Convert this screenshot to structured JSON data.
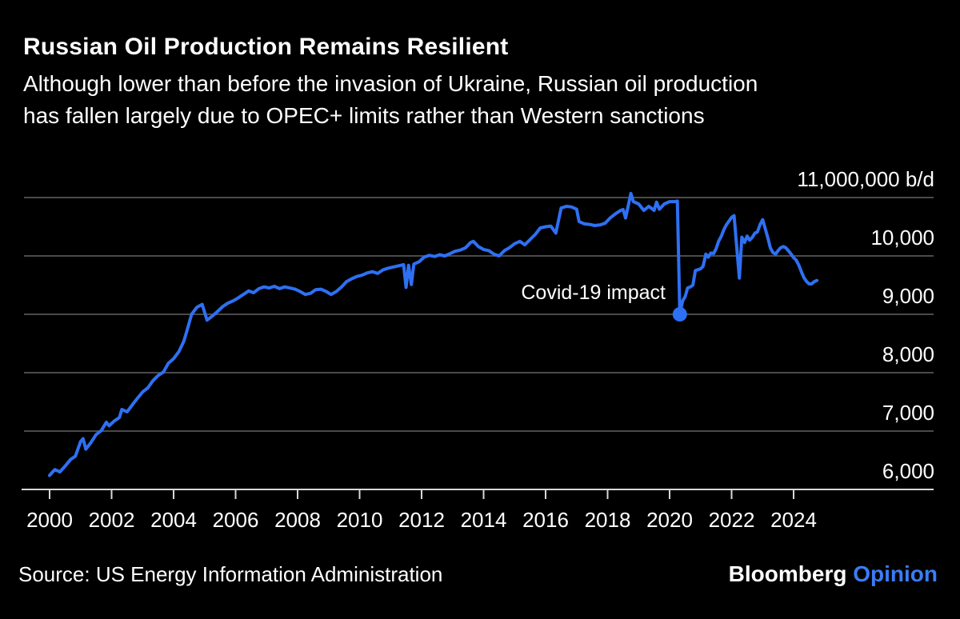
{
  "header": {
    "title": "Russian Oil Production Remains Resilient",
    "subtitle": "Although lower than before the invasion of Ukraine, Russian oil production\nhas fallen largely due to OPEC+ limits rather than Western sanctions"
  },
  "footer": {
    "source": "Source: US Energy Information Administration",
    "brand": "Bloomberg",
    "brand_suffix": "Opinion"
  },
  "colors": {
    "background": "#000000",
    "line": "#2e70f3",
    "grid": "#4a4a4a",
    "axis": "#d9d9d9",
    "text": "#ffffff",
    "brand_blue": "#3b7cf7"
  },
  "chart_data": {
    "type": "line",
    "title": "Russian Oil Production Remains Resilient",
    "series_name": "Russian oil production",
    "unit": "thousand barrels per day",
    "x_range_years": [
      2000,
      2024.75
    ],
    "y_range": [
      6000,
      11000
    ],
    "grid": "horizontal-only",
    "x_ticks": [
      2000,
      2002,
      2004,
      2006,
      2008,
      2010,
      2012,
      2014,
      2016,
      2018,
      2020,
      2022,
      2024
    ],
    "y_ticks": [
      {
        "value": 11000,
        "label": "11,000,000 b/d"
      },
      {
        "value": 10000,
        "label": "10,000"
      },
      {
        "value": 9000,
        "label": "9,000"
      },
      {
        "value": 8000,
        "label": "8,000"
      },
      {
        "value": 7000,
        "label": "7,000"
      },
      {
        "value": 6000,
        "label": "6,000"
      }
    ],
    "annotation": {
      "text": "Covid-19 impact",
      "year": 2020.33,
      "value": 9000
    },
    "points": [
      [
        2000.0,
        6240
      ],
      [
        2000.08,
        6290
      ],
      [
        2000.17,
        6340
      ],
      [
        2000.33,
        6300
      ],
      [
        2000.5,
        6400
      ],
      [
        2000.67,
        6510
      ],
      [
        2000.83,
        6570
      ],
      [
        2001.0,
        6820
      ],
      [
        2001.08,
        6870
      ],
      [
        2001.17,
        6690
      ],
      [
        2001.33,
        6800
      ],
      [
        2001.5,
        6940
      ],
      [
        2001.67,
        7010
      ],
      [
        2001.83,
        7150
      ],
      [
        2001.92,
        7090
      ],
      [
        2002.08,
        7170
      ],
      [
        2002.25,
        7230
      ],
      [
        2002.33,
        7370
      ],
      [
        2002.5,
        7330
      ],
      [
        2002.67,
        7450
      ],
      [
        2002.83,
        7560
      ],
      [
        2003.0,
        7670
      ],
      [
        2003.17,
        7740
      ],
      [
        2003.33,
        7860
      ],
      [
        2003.5,
        7950
      ],
      [
        2003.67,
        8010
      ],
      [
        2003.83,
        8160
      ],
      [
        2004.0,
        8240
      ],
      [
        2004.17,
        8360
      ],
      [
        2004.33,
        8540
      ],
      [
        2004.42,
        8700
      ],
      [
        2004.58,
        9000
      ],
      [
        2004.75,
        9120
      ],
      [
        2004.92,
        9170
      ],
      [
        2005.08,
        8900
      ],
      [
        2005.25,
        8970
      ],
      [
        2005.42,
        9050
      ],
      [
        2005.58,
        9130
      ],
      [
        2005.75,
        9190
      ],
      [
        2005.92,
        9230
      ],
      [
        2006.08,
        9280
      ],
      [
        2006.25,
        9340
      ],
      [
        2006.42,
        9400
      ],
      [
        2006.58,
        9370
      ],
      [
        2006.75,
        9440
      ],
      [
        2006.92,
        9470
      ],
      [
        2007.08,
        9450
      ],
      [
        2007.25,
        9480
      ],
      [
        2007.42,
        9440
      ],
      [
        2007.58,
        9470
      ],
      [
        2007.75,
        9450
      ],
      [
        2007.92,
        9430
      ],
      [
        2008.08,
        9390
      ],
      [
        2008.25,
        9340
      ],
      [
        2008.42,
        9360
      ],
      [
        2008.58,
        9420
      ],
      [
        2008.75,
        9430
      ],
      [
        2008.92,
        9390
      ],
      [
        2009.08,
        9340
      ],
      [
        2009.25,
        9390
      ],
      [
        2009.42,
        9470
      ],
      [
        2009.58,
        9560
      ],
      [
        2009.75,
        9610
      ],
      [
        2009.92,
        9650
      ],
      [
        2010.08,
        9670
      ],
      [
        2010.25,
        9710
      ],
      [
        2010.42,
        9730
      ],
      [
        2010.58,
        9700
      ],
      [
        2010.75,
        9760
      ],
      [
        2010.92,
        9790
      ],
      [
        2011.08,
        9810
      ],
      [
        2011.25,
        9830
      ],
      [
        2011.42,
        9850
      ],
      [
        2011.5,
        9460
      ],
      [
        2011.58,
        9840
      ],
      [
        2011.67,
        9510
      ],
      [
        2011.75,
        9860
      ],
      [
        2011.92,
        9900
      ],
      [
        2012.08,
        9980
      ],
      [
        2012.25,
        10010
      ],
      [
        2012.42,
        9990
      ],
      [
        2012.58,
        10020
      ],
      [
        2012.75,
        10000
      ],
      [
        2012.92,
        10040
      ],
      [
        2013.08,
        10080
      ],
      [
        2013.25,
        10100
      ],
      [
        2013.42,
        10140
      ],
      [
        2013.58,
        10230
      ],
      [
        2013.67,
        10250
      ],
      [
        2013.83,
        10160
      ],
      [
        2014.0,
        10110
      ],
      [
        2014.17,
        10090
      ],
      [
        2014.33,
        10030
      ],
      [
        2014.5,
        10000
      ],
      [
        2014.67,
        10090
      ],
      [
        2014.83,
        10140
      ],
      [
        2015.0,
        10210
      ],
      [
        2015.17,
        10250
      ],
      [
        2015.33,
        10190
      ],
      [
        2015.5,
        10280
      ],
      [
        2015.67,
        10370
      ],
      [
        2015.83,
        10480
      ],
      [
        2016.0,
        10500
      ],
      [
        2016.17,
        10510
      ],
      [
        2016.33,
        10390
      ],
      [
        2016.5,
        10820
      ],
      [
        2016.67,
        10850
      ],
      [
        2016.83,
        10840
      ],
      [
        2017.0,
        10800
      ],
      [
        2017.08,
        10590
      ],
      [
        2017.25,
        10550
      ],
      [
        2017.42,
        10540
      ],
      [
        2017.58,
        10520
      ],
      [
        2017.75,
        10530
      ],
      [
        2017.92,
        10560
      ],
      [
        2018.08,
        10650
      ],
      [
        2018.25,
        10720
      ],
      [
        2018.42,
        10780
      ],
      [
        2018.5,
        10795
      ],
      [
        2018.58,
        10650
      ],
      [
        2018.75,
        11070
      ],
      [
        2018.83,
        10930
      ],
      [
        2019.0,
        10890
      ],
      [
        2019.17,
        10780
      ],
      [
        2019.33,
        10850
      ],
      [
        2019.5,
        10780
      ],
      [
        2019.58,
        10920
      ],
      [
        2019.67,
        10800
      ],
      [
        2019.83,
        10890
      ],
      [
        2020.0,
        10930
      ],
      [
        2020.17,
        10930
      ],
      [
        2020.25,
        10940
      ],
      [
        2020.33,
        9000
      ],
      [
        2020.42,
        9230
      ],
      [
        2020.5,
        9300
      ],
      [
        2020.58,
        9450
      ],
      [
        2020.67,
        9470
      ],
      [
        2020.75,
        9500
      ],
      [
        2020.83,
        9750
      ],
      [
        2021.0,
        9780
      ],
      [
        2021.08,
        9820
      ],
      [
        2021.17,
        10030
      ],
      [
        2021.25,
        9980
      ],
      [
        2021.33,
        10050
      ],
      [
        2021.42,
        10040
      ],
      [
        2021.5,
        10120
      ],
      [
        2021.58,
        10250
      ],
      [
        2021.67,
        10340
      ],
      [
        2021.75,
        10450
      ],
      [
        2021.83,
        10530
      ],
      [
        2021.92,
        10600
      ],
      [
        2022.0,
        10660
      ],
      [
        2022.08,
        10690
      ],
      [
        2022.25,
        9620
      ],
      [
        2022.33,
        10320
      ],
      [
        2022.42,
        10230
      ],
      [
        2022.5,
        10340
      ],
      [
        2022.58,
        10270
      ],
      [
        2022.67,
        10320
      ],
      [
        2022.75,
        10390
      ],
      [
        2022.83,
        10410
      ],
      [
        2022.92,
        10540
      ],
      [
        2023.0,
        10620
      ],
      [
        2023.08,
        10480
      ],
      [
        2023.17,
        10310
      ],
      [
        2023.25,
        10140
      ],
      [
        2023.33,
        10060
      ],
      [
        2023.42,
        10030
      ],
      [
        2023.5,
        10090
      ],
      [
        2023.58,
        10140
      ],
      [
        2023.67,
        10160
      ],
      [
        2023.75,
        10140
      ],
      [
        2023.83,
        10090
      ],
      [
        2023.92,
        10030
      ],
      [
        2024.0,
        9970
      ],
      [
        2024.08,
        9930
      ],
      [
        2024.17,
        9840
      ],
      [
        2024.25,
        9730
      ],
      [
        2024.33,
        9630
      ],
      [
        2024.42,
        9560
      ],
      [
        2024.5,
        9520
      ],
      [
        2024.58,
        9520
      ],
      [
        2024.67,
        9560
      ],
      [
        2024.75,
        9580
      ]
    ]
  }
}
